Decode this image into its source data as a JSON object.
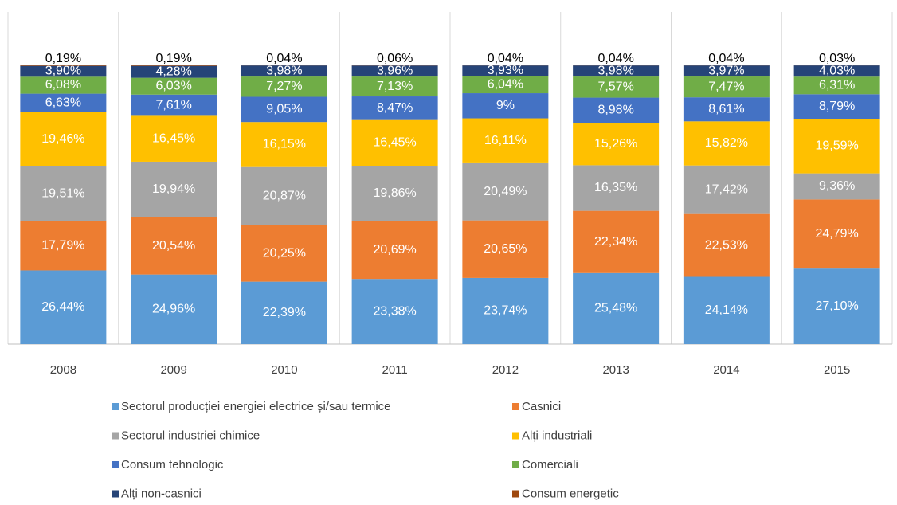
{
  "chart_data": {
    "type": "stacked_bar",
    "categories": [
      "2008",
      "2009",
      "2010",
      "2011",
      "2012",
      "2013",
      "2014",
      "2015"
    ],
    "series": [
      {
        "name": "Sectorul producției energiei electrice și/sau termice",
        "color": "#5b9bd5",
        "values": [
          26.44,
          24.96,
          22.39,
          23.38,
          23.74,
          25.48,
          24.14,
          27.1
        ],
        "value_labels": [
          "26,44%",
          "24,96%",
          "22,39%",
          "23,38%",
          "23,74%",
          "25,48%",
          "24,14%",
          "27,10%"
        ]
      },
      {
        "name": "Casnici",
        "color": "#ed7d31",
        "values": [
          17.79,
          20.54,
          20.25,
          20.69,
          20.65,
          22.34,
          22.53,
          24.79
        ],
        "value_labels": [
          "17,79%",
          "20,54%",
          "20,25%",
          "20,69%",
          "20,65%",
          "22,34%",
          "22,53%",
          "24,79%"
        ]
      },
      {
        "name": "Sectorul industriei chimice",
        "color": "#a5a5a5",
        "values": [
          19.51,
          19.94,
          20.87,
          19.86,
          20.49,
          16.35,
          17.42,
          9.36
        ],
        "value_labels": [
          "19,51%",
          "19,94%",
          "20,87%",
          "19,86%",
          "20,49%",
          "16,35%",
          "17,42%",
          "9,36%"
        ]
      },
      {
        "name": "Alți industriali",
        "color": "#ffc000",
        "values": [
          19.46,
          16.45,
          16.15,
          16.45,
          16.11,
          15.26,
          15.82,
          19.59
        ],
        "value_labels": [
          "19,46%",
          "16,45%",
          "16,15%",
          "16,45%",
          "16,11%",
          "15,26%",
          "15,82%",
          "19,59%"
        ]
      },
      {
        "name": "Consum tehnologic",
        "color": "#4472c4",
        "values": [
          6.63,
          7.61,
          9.05,
          8.47,
          9,
          8.98,
          8.61,
          8.79
        ],
        "value_labels": [
          "6,63%",
          "7,61%",
          "9,05%",
          "8,47%",
          "9%",
          "8,98%",
          "8,61%",
          "8,79%"
        ]
      },
      {
        "name": "Comerciali",
        "color": "#70ad47",
        "values": [
          6.08,
          6.03,
          7.27,
          7.13,
          6.04,
          7.57,
          7.47,
          6.31
        ],
        "value_labels": [
          "6,08%",
          "6,03%",
          "7,27%",
          "7,13%",
          "6,04%",
          "7,57%",
          "7,47%",
          "6,31%"
        ]
      },
      {
        "name": "Alți non-casnici",
        "color": "#264478",
        "values": [
          3.9,
          4.28,
          3.98,
          3.96,
          3.93,
          3.98,
          3.97,
          4.03
        ],
        "value_labels": [
          "3,90%",
          "4,28%",
          "3,98%",
          "3,96%",
          "3,93%",
          "3,98%",
          "3,97%",
          "4,03%"
        ]
      },
      {
        "name": "Consum energetic",
        "color": "#9e480e",
        "values": [
          0.19,
          0.19,
          0.04,
          0.06,
          0.04,
          0.04,
          0.04,
          0.03
        ],
        "value_labels": [
          "0,19%",
          "0,19%",
          "0,04%",
          "0,06%",
          "0,04%",
          "0,04%",
          "0,04%",
          "0,03%"
        ]
      }
    ]
  }
}
